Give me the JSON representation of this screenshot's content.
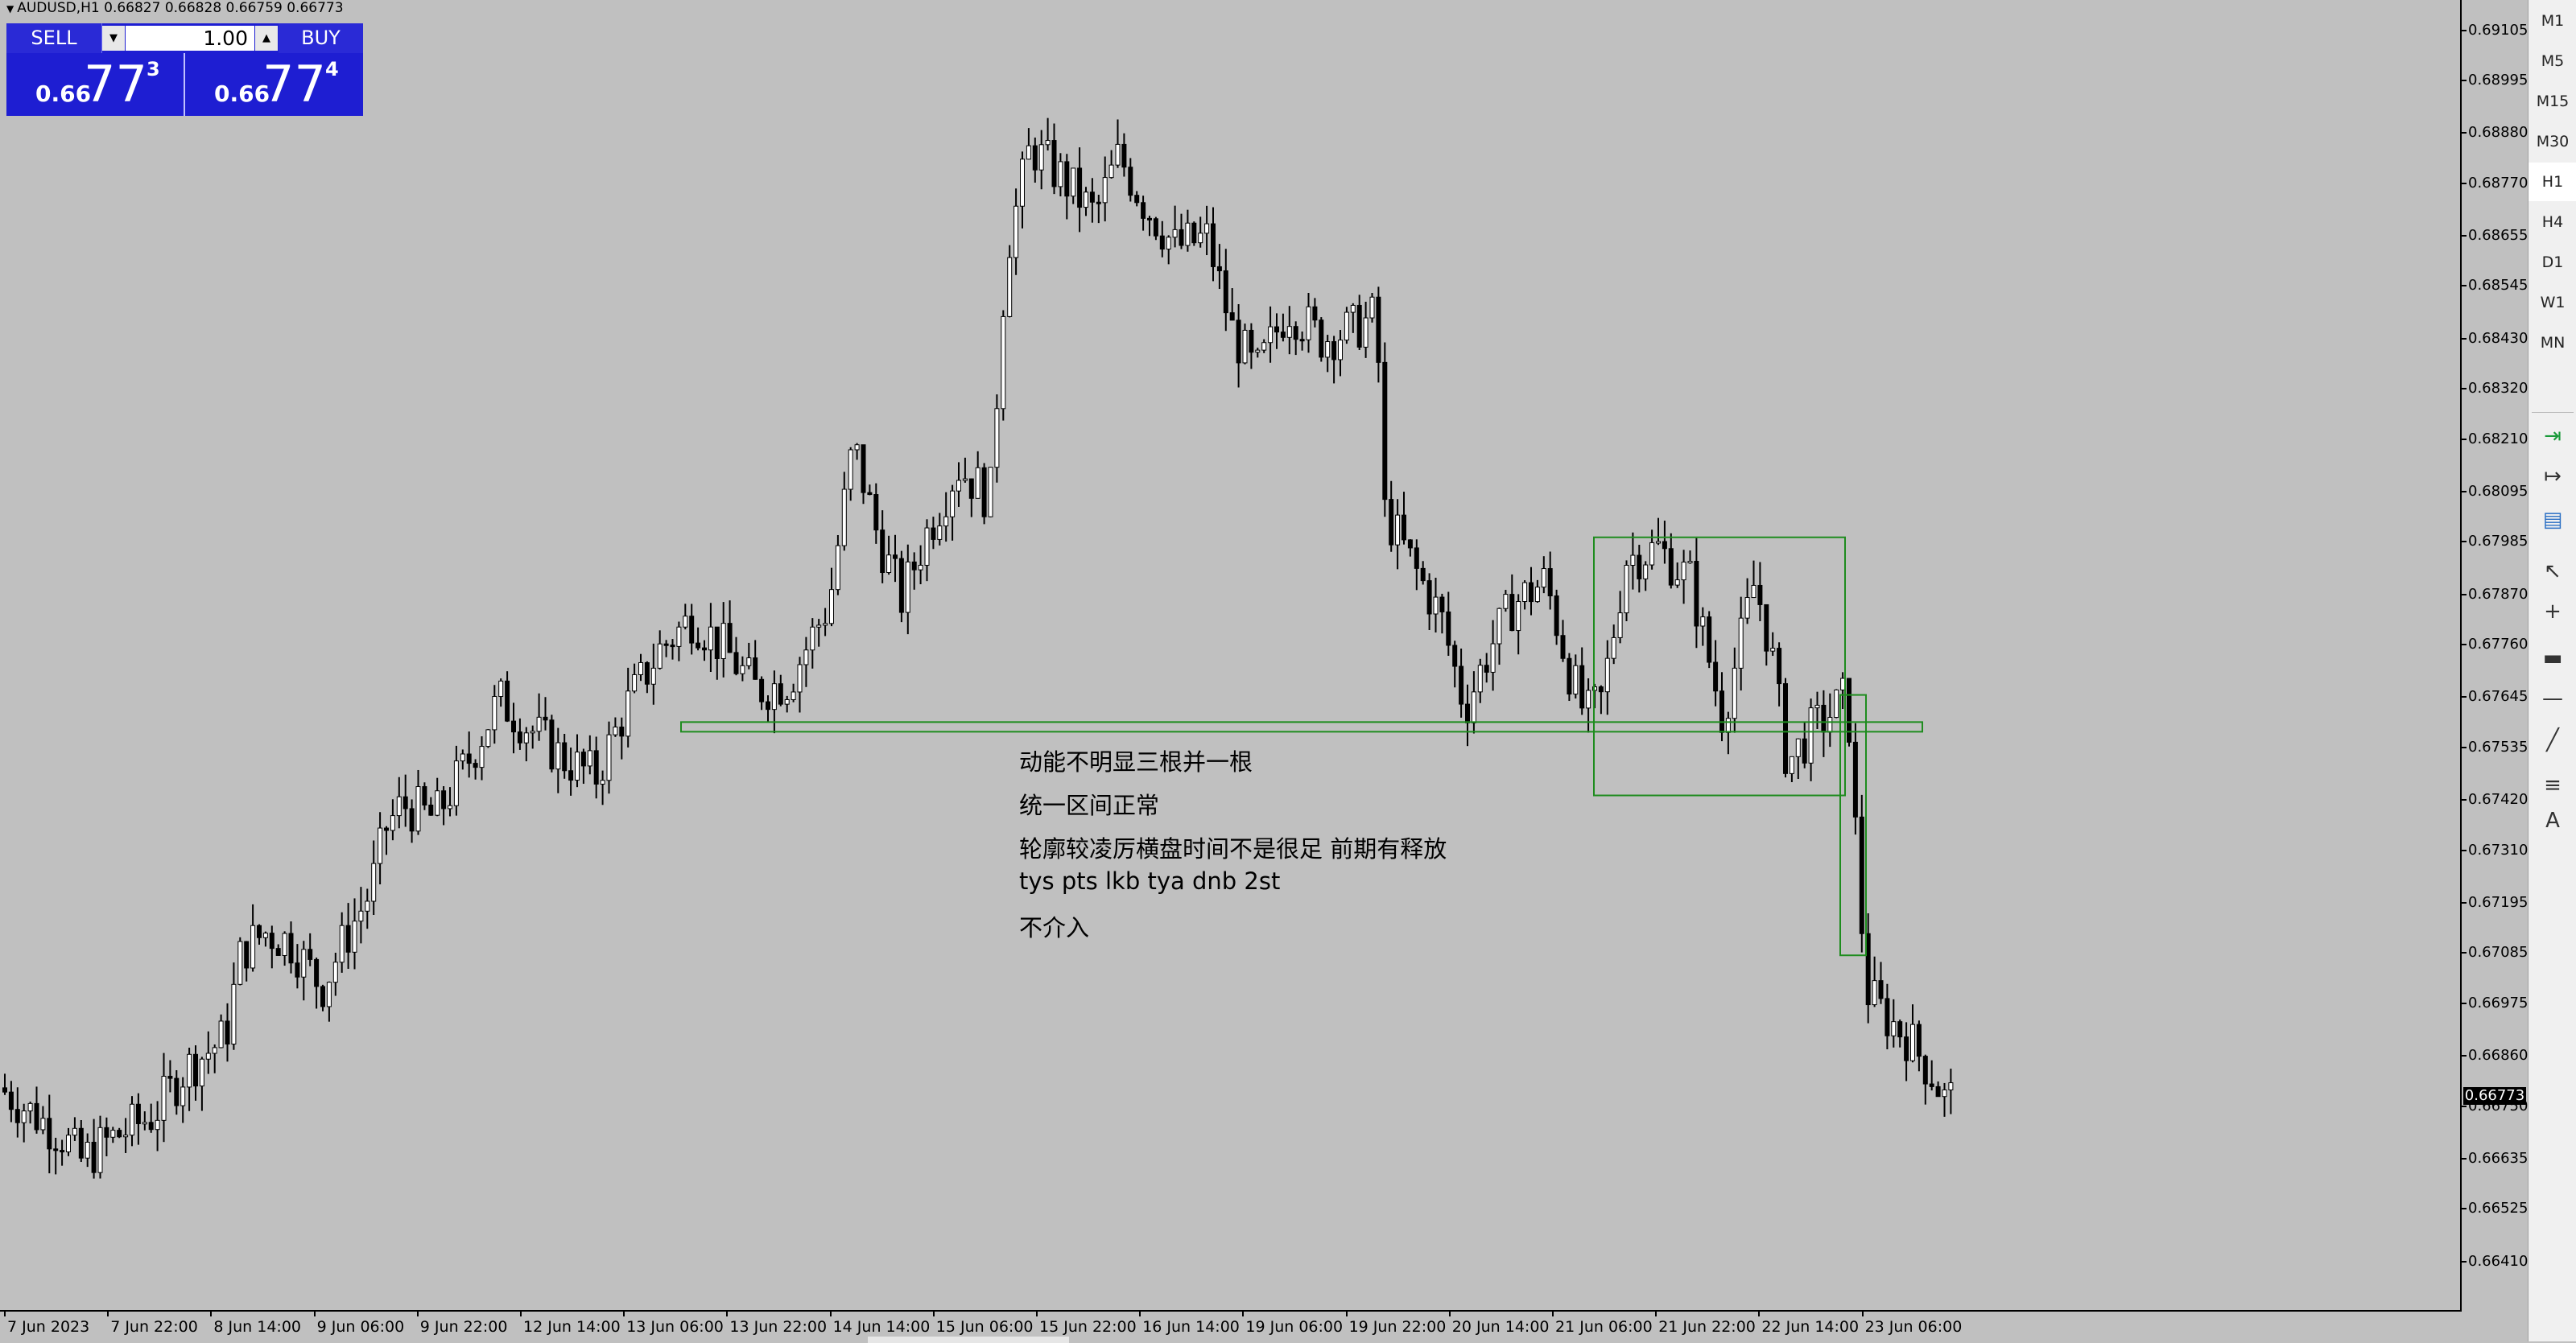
{
  "chart": {
    "title": "AUDUSD,H1  0.66827 0.66828 0.66759 0.66773",
    "current_price": "0.66773"
  },
  "trade_panel": {
    "sell_label": "SELL",
    "buy_label": "BUY",
    "lot": "1.00",
    "sell_price_small": "0.66",
    "sell_price_big": "77",
    "sell_price_sup": "3",
    "buy_price_small": "0.66",
    "buy_price_big": "77",
    "buy_price_sup": "4"
  },
  "notes": [
    "动能不明显三根并一根",
    "统一区间正常",
    "轮廓较凌厉横盘时间不是很足 前期有释放",
    "tys pts lkb tya dnb 2st",
    "不介入"
  ],
  "price_axis": [
    "0.69105",
    "0.68995",
    "0.68880",
    "0.68770",
    "0.68655",
    "0.68545",
    "0.68430",
    "0.68320",
    "0.68210",
    "0.68095",
    "0.67985",
    "0.67870",
    "0.67760",
    "0.67645",
    "0.67535",
    "0.67420",
    "0.67310",
    "0.67195",
    "0.67085",
    "0.66975",
    "0.66860",
    "0.66750",
    "0.66635",
    "0.66525",
    "0.66410"
  ],
  "time_axis": [
    "7 Jun 2023",
    "7 Jun 22:00",
    "8 Jun 14:00",
    "9 Jun 06:00",
    "9 Jun 22:00",
    "12 Jun 14:00",
    "13 Jun 06:00",
    "13 Jun 22:00",
    "14 Jun 14:00",
    "15 Jun 06:00",
    "15 Jun 22:00",
    "16 Jun 14:00",
    "19 Jun 06:00",
    "19 Jun 22:00",
    "20 Jun 14:00",
    "21 Jun 06:00",
    "21 Jun 22:00",
    "22 Jun 14:00",
    "23 Jun 06:00"
  ],
  "timeframes": [
    "M1",
    "M5",
    "M15",
    "M30",
    "H1",
    "H4",
    "D1",
    "W1",
    "MN"
  ],
  "active_timeframe": "H1",
  "tools": [
    "auto-scroll-icon",
    "chart-shift-icon",
    "indicator-window-icon",
    "cursor-icon",
    "crosshair-icon",
    "rectangle-icon",
    "horizontal-line-icon",
    "trendline-icon",
    "fibonacci-icon",
    "text-tool-icon"
  ],
  "colors": {
    "background": "#c0c0c0",
    "candles": "#000000",
    "annotation": "#1e8c1e",
    "panel": "#1e1ed2"
  },
  "chart_data": {
    "type": "candlestick",
    "symbol": "AUDUSD",
    "timeframe": "H1",
    "ylim": [
      0.6636,
      0.6915
    ],
    "close_path": [
      [
        0,
        0.6679
      ],
      [
        80,
        0.6668
      ],
      [
        100,
        0.6663
      ],
      [
        140,
        0.6668
      ],
      [
        190,
        0.6673
      ],
      [
        230,
        0.6683
      ],
      [
        280,
        0.669
      ],
      [
        300,
        0.6709
      ],
      [
        330,
        0.6713
      ],
      [
        360,
        0.6711
      ],
      [
        400,
        0.6701
      ],
      [
        430,
        0.6712
      ],
      [
        460,
        0.6722
      ],
      [
        480,
        0.6736
      ],
      [
        500,
        0.6741
      ],
      [
        540,
        0.6738
      ],
      [
        580,
        0.675
      ],
      [
        620,
        0.6764
      ],
      [
        650,
        0.6759
      ],
      [
        700,
        0.6751
      ],
      [
        740,
        0.6747
      ],
      [
        780,
        0.6763
      ],
      [
        820,
        0.6775
      ],
      [
        860,
        0.6782
      ],
      [
        900,
        0.6775
      ],
      [
        940,
        0.6766
      ],
      [
        980,
        0.6768
      ],
      [
        1030,
        0.6785
      ],
      [
        1060,
        0.682
      ],
      [
        1090,
        0.68
      ],
      [
        1120,
        0.6786
      ],
      [
        1150,
        0.68
      ],
      [
        1190,
        0.6815
      ],
      [
        1230,
        0.6808
      ],
      [
        1250,
        0.6862
      ],
      [
        1280,
        0.6885
      ],
      [
        1320,
        0.6878
      ],
      [
        1360,
        0.687
      ],
      [
        1390,
        0.6883
      ],
      [
        1420,
        0.6873
      ],
      [
        1460,
        0.6863
      ],
      [
        1500,
        0.6865
      ],
      [
        1530,
        0.6845
      ],
      [
        1560,
        0.6835
      ],
      [
        1600,
        0.685
      ],
      [
        1640,
        0.6843
      ],
      [
        1680,
        0.6845
      ],
      [
        1710,
        0.6848
      ],
      [
        1720,
        0.6805
      ],
      [
        1750,
        0.6795
      ],
      [
        1790,
        0.6782
      ],
      [
        1820,
        0.6762
      ],
      [
        1850,
        0.6775
      ],
      [
        1880,
        0.6785
      ],
      [
        1920,
        0.679
      ],
      [
        1950,
        0.677
      ],
      [
        1970,
        0.676
      ],
      [
        1990,
        0.6764
      ],
      [
        2020,
        0.6795
      ],
      [
        2060,
        0.6797
      ],
      [
        2100,
        0.679
      ],
      [
        2140,
        0.676
      ],
      [
        2180,
        0.679
      ],
      [
        2200,
        0.6775
      ],
      [
        2220,
        0.675
      ],
      [
        2250,
        0.6757
      ],
      [
        2280,
        0.6762
      ],
      [
        2295,
        0.6765
      ],
      [
        2310,
        0.672
      ],
      [
        2320,
        0.67
      ],
      [
        2340,
        0.6695
      ],
      [
        2370,
        0.669
      ],
      [
        2400,
        0.6682
      ],
      [
        2420,
        0.6675
      ],
      [
        2430,
        0.668
      ],
      [
        2450,
        0.6678
      ],
      [
        2468,
        0.6677
      ]
    ],
    "annotations": {
      "support_line": 0.6758,
      "range_box": {
        "top": 0.67995,
        "bottom": 0.6743
      },
      "breakout_box": {
        "top": 0.6765,
        "bottom": 0.6708
      }
    }
  }
}
